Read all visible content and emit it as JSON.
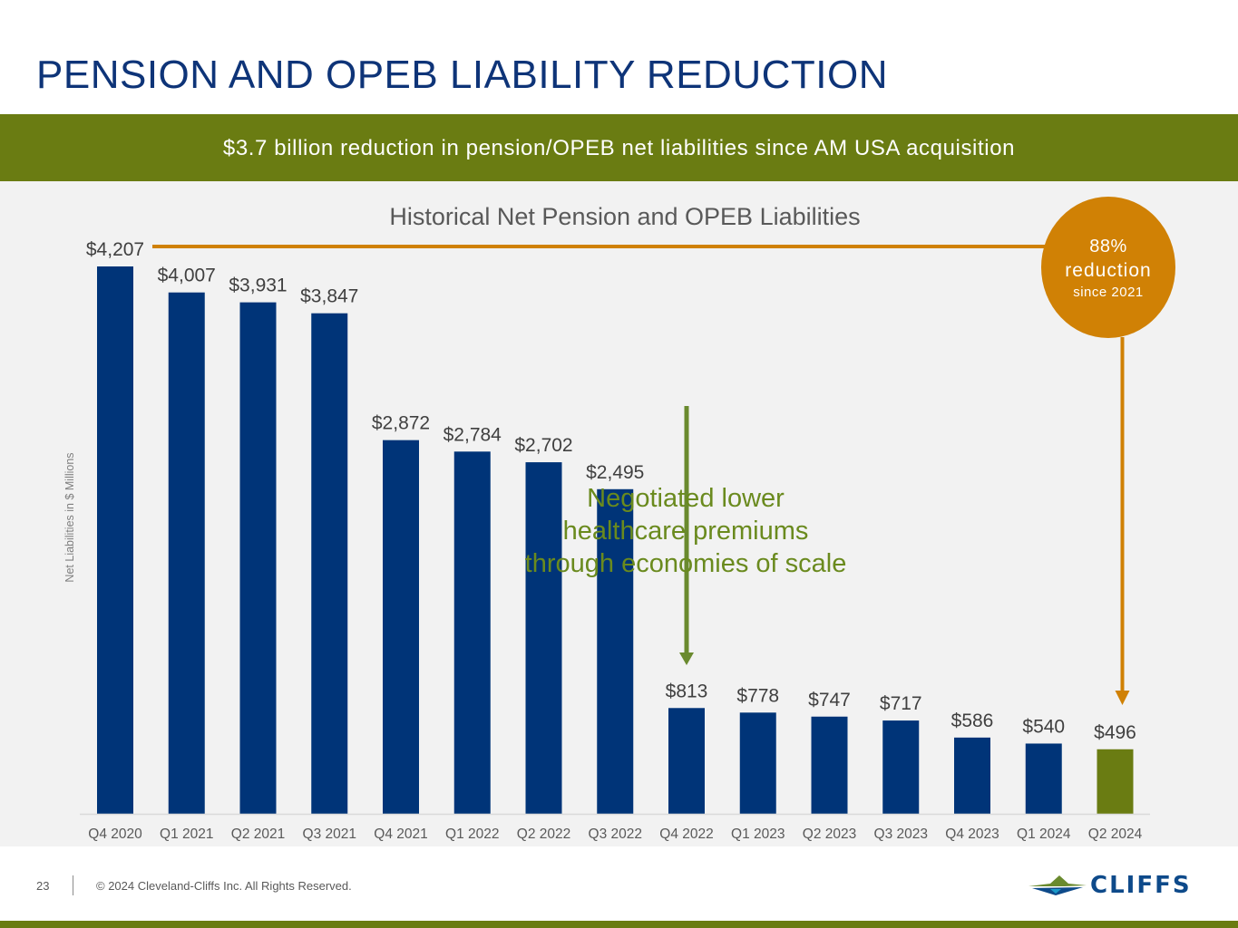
{
  "header": {
    "title": "PENSION AND OPEB LIABILITY REDUCTION"
  },
  "banner": {
    "text": "$3.7 billion reduction in pension/OPEB net liabilities since AM USA acquisition"
  },
  "callout": {
    "percent": "88%",
    "label": "reduction",
    "since": "since 2021"
  },
  "annotation": {
    "lines": [
      "Negotiated lower",
      "healthcare premiums",
      "through economies of scale"
    ]
  },
  "footer": {
    "page_number": "23",
    "copyright": "© 2024 Cleveland-Cliffs Inc. All Rights Reserved.",
    "logo_text": "CLIFFS"
  },
  "colors": {
    "title": "#0e3478",
    "bar": "#003478",
    "bar_highlight": "#6a7c12",
    "banner": "#6a7c12",
    "callout": "#d08105",
    "annotation": "#6a8a1e",
    "arrow_green": "#6a8a2e",
    "label": "#404040"
  },
  "chart_data": {
    "type": "bar",
    "title": "Historical Net Pension and OPEB Liabilities",
    "xlabel": "",
    "ylabel": "Net Liabilities in $ Millions",
    "ylim": [
      0,
      4207
    ],
    "grid": false,
    "categories": [
      "Q4 2020",
      "Q1 2021",
      "Q2 2021",
      "Q3 2021",
      "Q4 2021",
      "Q1 2022",
      "Q2 2022",
      "Q3 2022",
      "Q4 2022",
      "Q1 2023",
      "Q2 2023",
      "Q3 2023",
      "Q4 2023",
      "Q1 2024",
      "Q2 2024"
    ],
    "values": [
      4207,
      4007,
      3931,
      3847,
      2872,
      2784,
      2702,
      2495,
      813,
      778,
      747,
      717,
      586,
      540,
      496
    ],
    "value_labels": [
      "$4,207",
      "$4,007",
      "$3,931",
      "$3,847",
      "$2,872",
      "$2,784",
      "$2,702",
      "$2,495",
      "$813",
      "$778",
      "$747",
      "$717",
      "$586",
      "$540",
      "$496"
    ],
    "highlight_index": 14,
    "annotations": [
      {
        "text": "Negotiated lower healthcare premiums through economies of scale",
        "points_to": "Q4 2022"
      },
      {
        "text": "88% reduction since 2021",
        "from": "Q4 2020",
        "points_to": "Q2 2024"
      }
    ]
  }
}
